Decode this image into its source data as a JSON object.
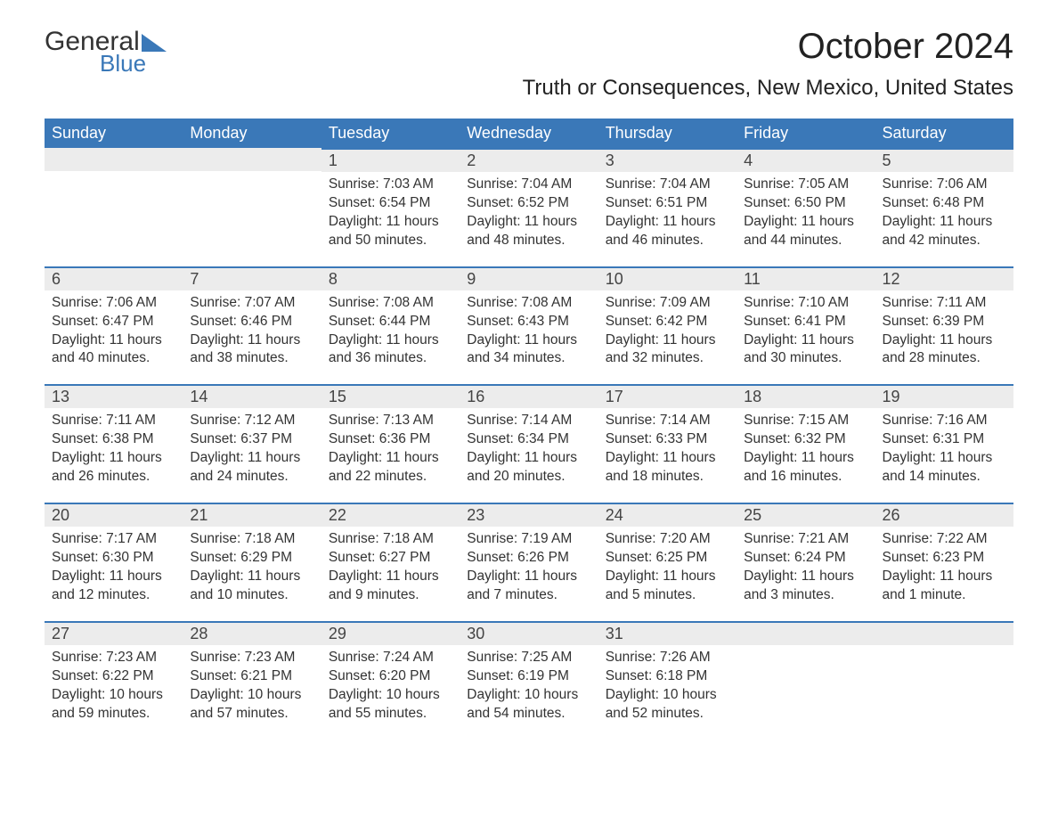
{
  "logo": {
    "main": "General",
    "sub": "Blue",
    "tri_color": "#3a78b8"
  },
  "month_title": "October 2024",
  "location": "Truth or Consequences, New Mexico, United States",
  "day_headers": [
    "Sunday",
    "Monday",
    "Tuesday",
    "Wednesday",
    "Thursday",
    "Friday",
    "Saturday"
  ],
  "colors": {
    "header_bg": "#3a78b8",
    "header_text": "#ffffff",
    "daynum_bg": "#ececec",
    "daynum_border": "#3a78b8",
    "text": "#333333",
    "background": "#ffffff"
  },
  "typography": {
    "month_title_fontsize": 40,
    "location_fontsize": 24,
    "header_fontsize": 18,
    "daynum_fontsize": 18,
    "body_fontsize": 15.5
  },
  "weeks": [
    [
      {
        "num": "",
        "sunrise": "",
        "sunset": "",
        "daylight": ""
      },
      {
        "num": "",
        "sunrise": "",
        "sunset": "",
        "daylight": ""
      },
      {
        "num": "1",
        "sunrise": "Sunrise: 7:03 AM",
        "sunset": "Sunset: 6:54 PM",
        "daylight": "Daylight: 11 hours and 50 minutes."
      },
      {
        "num": "2",
        "sunrise": "Sunrise: 7:04 AM",
        "sunset": "Sunset: 6:52 PM",
        "daylight": "Daylight: 11 hours and 48 minutes."
      },
      {
        "num": "3",
        "sunrise": "Sunrise: 7:04 AM",
        "sunset": "Sunset: 6:51 PM",
        "daylight": "Daylight: 11 hours and 46 minutes."
      },
      {
        "num": "4",
        "sunrise": "Sunrise: 7:05 AM",
        "sunset": "Sunset: 6:50 PM",
        "daylight": "Daylight: 11 hours and 44 minutes."
      },
      {
        "num": "5",
        "sunrise": "Sunrise: 7:06 AM",
        "sunset": "Sunset: 6:48 PM",
        "daylight": "Daylight: 11 hours and 42 minutes."
      }
    ],
    [
      {
        "num": "6",
        "sunrise": "Sunrise: 7:06 AM",
        "sunset": "Sunset: 6:47 PM",
        "daylight": "Daylight: 11 hours and 40 minutes."
      },
      {
        "num": "7",
        "sunrise": "Sunrise: 7:07 AM",
        "sunset": "Sunset: 6:46 PM",
        "daylight": "Daylight: 11 hours and 38 minutes."
      },
      {
        "num": "8",
        "sunrise": "Sunrise: 7:08 AM",
        "sunset": "Sunset: 6:44 PM",
        "daylight": "Daylight: 11 hours and 36 minutes."
      },
      {
        "num": "9",
        "sunrise": "Sunrise: 7:08 AM",
        "sunset": "Sunset: 6:43 PM",
        "daylight": "Daylight: 11 hours and 34 minutes."
      },
      {
        "num": "10",
        "sunrise": "Sunrise: 7:09 AM",
        "sunset": "Sunset: 6:42 PM",
        "daylight": "Daylight: 11 hours and 32 minutes."
      },
      {
        "num": "11",
        "sunrise": "Sunrise: 7:10 AM",
        "sunset": "Sunset: 6:41 PM",
        "daylight": "Daylight: 11 hours and 30 minutes."
      },
      {
        "num": "12",
        "sunrise": "Sunrise: 7:11 AM",
        "sunset": "Sunset: 6:39 PM",
        "daylight": "Daylight: 11 hours and 28 minutes."
      }
    ],
    [
      {
        "num": "13",
        "sunrise": "Sunrise: 7:11 AM",
        "sunset": "Sunset: 6:38 PM",
        "daylight": "Daylight: 11 hours and 26 minutes."
      },
      {
        "num": "14",
        "sunrise": "Sunrise: 7:12 AM",
        "sunset": "Sunset: 6:37 PM",
        "daylight": "Daylight: 11 hours and 24 minutes."
      },
      {
        "num": "15",
        "sunrise": "Sunrise: 7:13 AM",
        "sunset": "Sunset: 6:36 PM",
        "daylight": "Daylight: 11 hours and 22 minutes."
      },
      {
        "num": "16",
        "sunrise": "Sunrise: 7:14 AM",
        "sunset": "Sunset: 6:34 PM",
        "daylight": "Daylight: 11 hours and 20 minutes."
      },
      {
        "num": "17",
        "sunrise": "Sunrise: 7:14 AM",
        "sunset": "Sunset: 6:33 PM",
        "daylight": "Daylight: 11 hours and 18 minutes."
      },
      {
        "num": "18",
        "sunrise": "Sunrise: 7:15 AM",
        "sunset": "Sunset: 6:32 PM",
        "daylight": "Daylight: 11 hours and 16 minutes."
      },
      {
        "num": "19",
        "sunrise": "Sunrise: 7:16 AM",
        "sunset": "Sunset: 6:31 PM",
        "daylight": "Daylight: 11 hours and 14 minutes."
      }
    ],
    [
      {
        "num": "20",
        "sunrise": "Sunrise: 7:17 AM",
        "sunset": "Sunset: 6:30 PM",
        "daylight": "Daylight: 11 hours and 12 minutes."
      },
      {
        "num": "21",
        "sunrise": "Sunrise: 7:18 AM",
        "sunset": "Sunset: 6:29 PM",
        "daylight": "Daylight: 11 hours and 10 minutes."
      },
      {
        "num": "22",
        "sunrise": "Sunrise: 7:18 AM",
        "sunset": "Sunset: 6:27 PM",
        "daylight": "Daylight: 11 hours and 9 minutes."
      },
      {
        "num": "23",
        "sunrise": "Sunrise: 7:19 AM",
        "sunset": "Sunset: 6:26 PM",
        "daylight": "Daylight: 11 hours and 7 minutes."
      },
      {
        "num": "24",
        "sunrise": "Sunrise: 7:20 AM",
        "sunset": "Sunset: 6:25 PM",
        "daylight": "Daylight: 11 hours and 5 minutes."
      },
      {
        "num": "25",
        "sunrise": "Sunrise: 7:21 AM",
        "sunset": "Sunset: 6:24 PM",
        "daylight": "Daylight: 11 hours and 3 minutes."
      },
      {
        "num": "26",
        "sunrise": "Sunrise: 7:22 AM",
        "sunset": "Sunset: 6:23 PM",
        "daylight": "Daylight: 11 hours and 1 minute."
      }
    ],
    [
      {
        "num": "27",
        "sunrise": "Sunrise: 7:23 AM",
        "sunset": "Sunset: 6:22 PM",
        "daylight": "Daylight: 10 hours and 59 minutes."
      },
      {
        "num": "28",
        "sunrise": "Sunrise: 7:23 AM",
        "sunset": "Sunset: 6:21 PM",
        "daylight": "Daylight: 10 hours and 57 minutes."
      },
      {
        "num": "29",
        "sunrise": "Sunrise: 7:24 AM",
        "sunset": "Sunset: 6:20 PM",
        "daylight": "Daylight: 10 hours and 55 minutes."
      },
      {
        "num": "30",
        "sunrise": "Sunrise: 7:25 AM",
        "sunset": "Sunset: 6:19 PM",
        "daylight": "Daylight: 10 hours and 54 minutes."
      },
      {
        "num": "31",
        "sunrise": "Sunrise: 7:26 AM",
        "sunset": "Sunset: 6:18 PM",
        "daylight": "Daylight: 10 hours and 52 minutes."
      },
      {
        "num": "",
        "sunrise": "",
        "sunset": "",
        "daylight": ""
      },
      {
        "num": "",
        "sunrise": "",
        "sunset": "",
        "daylight": ""
      }
    ]
  ]
}
